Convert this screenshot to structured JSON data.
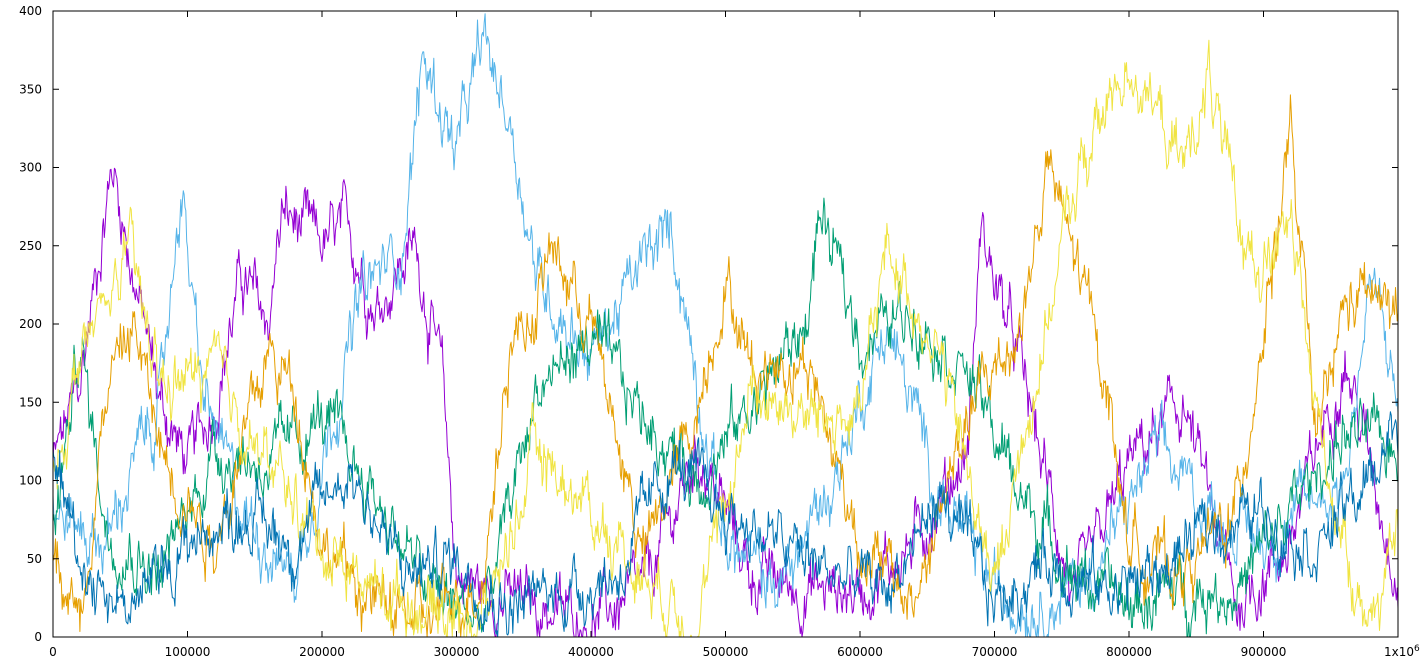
{
  "chart_data": {
    "type": "line",
    "title": "",
    "xlabel": "",
    "ylabel": "",
    "xlim": [
      0,
      1000000
    ],
    "ylim": [
      0,
      400
    ],
    "grid": false,
    "legend": "none",
    "x_ticks": [
      "0",
      "100000",
      "200000",
      "300000",
      "400000",
      "500000",
      "600000",
      "700000",
      "800000",
      "900000"
    ],
    "x_tick_last": "1x10",
    "x_tick_last_exp": "6",
    "y_ticks": [
      "0",
      "50",
      "100",
      "150",
      "200",
      "250",
      "300",
      "350",
      "400"
    ],
    "series": [
      {
        "color": "#9400d3",
        "x": [
          0,
          20000,
          40000,
          45000,
          60000,
          80000,
          100000,
          120000,
          140000,
          160000,
          170000,
          200000,
          220000,
          240000,
          260000,
          270000,
          290000,
          300000,
          320000,
          360000,
          400000,
          440000,
          480000,
          520000,
          560000,
          600000,
          640000,
          680000,
          690000,
          720000,
          760000,
          800000,
          840000,
          880000,
          920000,
          960000,
          1000000
        ],
        "values": [
          110,
          160,
          280,
          300,
          230,
          150,
          110,
          150,
          230,
          200,
          270,
          250,
          260,
          210,
          240,
          250,
          160,
          40,
          30,
          20,
          10,
          30,
          120,
          40,
          30,
          30,
          60,
          120,
          260,
          170,
          20,
          110,
          150,
          20,
          60,
          180,
          40
        ]
      },
      {
        "color": "#56b4e9",
        "x": [
          0,
          40000,
          60000,
          80000,
          95000,
          110000,
          140000,
          180000,
          230000,
          260000,
          275000,
          300000,
          320000,
          340000,
          360000,
          400000,
          440000,
          460000,
          500000,
          540000,
          580000,
          620000,
          660000,
          700000,
          740000,
          780000,
          820000,
          860000,
          900000,
          940000,
          960000,
          980000,
          1000000
        ],
        "values": [
          80,
          60,
          110,
          150,
          290,
          160,
          80,
          40,
          220,
          250,
          370,
          310,
          380,
          330,
          230,
          180,
          240,
          260,
          60,
          30,
          100,
          200,
          90,
          30,
          20,
          50,
          120,
          80,
          60,
          90,
          100,
          230,
          150
        ]
      },
      {
        "color": "#009e73",
        "x": [
          0,
          20000,
          40000,
          80000,
          120000,
          160000,
          200000,
          240000,
          280000,
          320000,
          360000,
          400000,
          440000,
          480000,
          520000,
          560000,
          570000,
          600000,
          640000,
          680000,
          720000,
          760000,
          800000,
          840000,
          880000,
          920000,
          960000,
          1000000
        ],
        "values": [
          60,
          190,
          70,
          40,
          120,
          110,
          140,
          90,
          30,
          10,
          160,
          190,
          140,
          100,
          150,
          200,
          270,
          190,
          210,
          170,
          90,
          40,
          20,
          30,
          30,
          80,
          130,
          120
        ]
      },
      {
        "color": "#e69f00",
        "x": [
          0,
          20000,
          40000,
          60000,
          80000,
          120000,
          160000,
          180000,
          200000,
          240000,
          280000,
          320000,
          340000,
          360000,
          370000,
          400000,
          440000,
          480000,
          500000,
          520000,
          560000,
          600000,
          640000,
          680000,
          720000,
          740000,
          780000,
          800000,
          840000,
          880000,
          920000,
          940000,
          960000,
          980000,
          1000000
        ],
        "values": [
          60,
          10,
          160,
          200,
          120,
          60,
          180,
          160,
          60,
          20,
          10,
          40,
          190,
          210,
          250,
          200,
          50,
          150,
          230,
          170,
          180,
          60,
          20,
          140,
          200,
          300,
          180,
          60,
          40,
          80,
          320,
          120,
          210,
          220,
          200
        ]
      },
      {
        "color": "#f0e442",
        "x": [
          0,
          20000,
          40000,
          55000,
          80000,
          120000,
          140000,
          160000,
          200000,
          240000,
          280000,
          320000,
          360000,
          400000,
          440000,
          480000,
          520000,
          560000,
          600000,
          620000,
          660000,
          700000,
          720000,
          760000,
          800000,
          840000,
          860000,
          880000,
          900000,
          920000,
          940000,
          960000,
          980000,
          1000000
        ],
        "values": [
          100,
          180,
          210,
          250,
          160,
          170,
          140,
          110,
          60,
          30,
          20,
          10,
          120,
          80,
          40,
          10,
          160,
          140,
          140,
          250,
          180,
          30,
          120,
          290,
          370,
          300,
          360,
          260,
          240,
          260,
          140,
          60,
          10,
          60
        ]
      },
      {
        "color": "#0072b2",
        "x": [
          0,
          20000,
          40000,
          60000,
          80000,
          100000,
          140000,
          180000,
          220000,
          260000,
          300000,
          340000,
          380000,
          420000,
          460000,
          500000,
          540000,
          580000,
          620000,
          660000,
          700000,
          740000,
          780000,
          820000,
          860000,
          900000,
          940000,
          980000,
          1000000
        ],
        "values": [
          120,
          50,
          30,
          20,
          40,
          60,
          80,
          60,
          110,
          40,
          50,
          20,
          30,
          40,
          110,
          80,
          60,
          40,
          30,
          90,
          20,
          50,
          30,
          40,
          70,
          80,
          60,
          100,
          140
        ]
      }
    ]
  }
}
